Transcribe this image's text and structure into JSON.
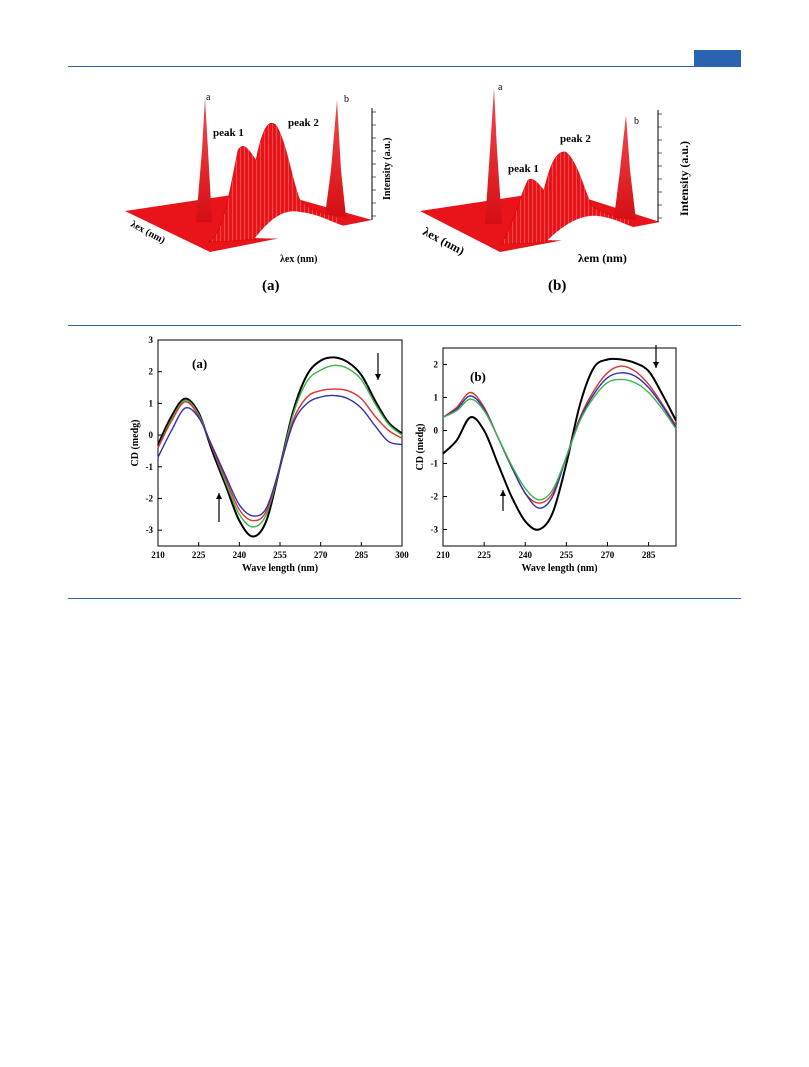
{
  "colors": {
    "rule": "#2a64b0",
    "surface": "#e8141a"
  },
  "fluorescence": [
    {
      "panel": "(a)",
      "peak_a": "a",
      "peak_b": "b",
      "peak1": "peak 1",
      "peak2": "peak 2",
      "z_label": "Intensity (a.u.)",
      "x_label": "λex (nm)",
      "y_label": "λex (nm)"
    },
    {
      "panel": "(b)",
      "peak_a": "a",
      "peak_b": "b",
      "peak1": "peak 1",
      "peak2": "peak 2",
      "z_label": "Intensity (a.u.)",
      "x_label": "λem (nm)",
      "y_label": "λex (nm)"
    }
  ],
  "chart_data": [
    {
      "type": "line",
      "panel_label": "(a)",
      "xlabel": "Wave length (nm)",
      "ylabel": "CD (medg)",
      "xlim": [
        210,
        300
      ],
      "ylim": [
        -3.5,
        3
      ],
      "xticks": [
        210,
        225,
        240,
        255,
        270,
        285,
        300
      ],
      "yticks": [
        -3,
        -2,
        -1,
        0,
        1,
        2,
        3
      ],
      "grid": false,
      "arrows": [
        "up near 233 nm",
        "down near 290 nm"
      ],
      "series": [
        {
          "color": "#000000",
          "x": [
            210,
            215,
            220,
            225,
            230,
            235,
            240,
            245,
            250,
            255,
            260,
            265,
            270,
            275,
            280,
            285,
            290,
            295,
            300
          ],
          "y": [
            -0.3,
            0.6,
            1.15,
            0.7,
            -0.5,
            -1.6,
            -2.7,
            -3.2,
            -2.7,
            -1.0,
            0.8,
            1.9,
            2.35,
            2.45,
            2.3,
            1.9,
            1.1,
            0.4,
            0.05
          ]
        },
        {
          "color": "#3cb44b",
          "x": [
            210,
            215,
            220,
            225,
            230,
            235,
            240,
            245,
            250,
            255,
            260,
            265,
            270,
            275,
            280,
            285,
            290,
            295,
            300
          ],
          "y": [
            -0.4,
            0.5,
            1.1,
            0.65,
            -0.4,
            -1.5,
            -2.5,
            -2.9,
            -2.5,
            -1.0,
            0.7,
            1.7,
            2.05,
            2.2,
            2.1,
            1.75,
            1.0,
            0.35,
            0.0
          ]
        },
        {
          "color": "#e03030",
          "x": [
            210,
            215,
            220,
            225,
            230,
            235,
            240,
            245,
            250,
            255,
            260,
            265,
            270,
            275,
            280,
            285,
            290,
            295,
            300
          ],
          "y": [
            -0.4,
            0.45,
            1.05,
            0.6,
            -0.4,
            -1.4,
            -2.35,
            -2.7,
            -2.4,
            -1.0,
            0.5,
            1.2,
            1.4,
            1.45,
            1.4,
            1.15,
            0.6,
            0.15,
            -0.1
          ]
        },
        {
          "color": "#3030b0",
          "x": [
            210,
            215,
            220,
            225,
            230,
            235,
            240,
            245,
            250,
            255,
            260,
            265,
            270,
            275,
            280,
            285,
            290,
            295,
            300
          ],
          "y": [
            -0.7,
            0.15,
            0.85,
            0.55,
            -0.35,
            -1.3,
            -2.2,
            -2.55,
            -2.3,
            -1.0,
            0.4,
            1.0,
            1.2,
            1.25,
            1.15,
            0.85,
            0.3,
            -0.2,
            -0.3
          ]
        }
      ]
    },
    {
      "type": "line",
      "panel_label": "(b)",
      "xlabel": "Wave length (nm)",
      "ylabel": "CD (medg)",
      "xlim": [
        210,
        295
      ],
      "ylim": [
        -3.5,
        2.5
      ],
      "xticks": [
        210,
        225,
        240,
        255,
        270,
        285
      ],
      "yticks": [
        -3,
        -2,
        -1,
        0,
        1,
        2
      ],
      "grid": false,
      "arrows": [
        "up near 232 nm",
        "down near 287 nm"
      ],
      "series": [
        {
          "color": "#000000",
          "x": [
            210,
            215,
            220,
            225,
            230,
            235,
            240,
            245,
            250,
            255,
            260,
            265,
            270,
            275,
            280,
            285,
            290,
            295
          ],
          "y": [
            -0.7,
            -0.3,
            0.4,
            0.0,
            -1.0,
            -2.0,
            -2.75,
            -3.0,
            -2.5,
            -1.0,
            0.8,
            1.9,
            2.15,
            2.15,
            2.05,
            1.8,
            1.1,
            0.3
          ]
        },
        {
          "color": "#e03030",
          "x": [
            210,
            215,
            220,
            225,
            230,
            235,
            240,
            245,
            250,
            255,
            260,
            265,
            270,
            275,
            280,
            285,
            290,
            295
          ],
          "y": [
            0.4,
            0.7,
            1.15,
            0.7,
            -0.2,
            -1.1,
            -1.9,
            -2.2,
            -1.9,
            -0.8,
            0.4,
            1.2,
            1.75,
            1.95,
            1.8,
            1.4,
            0.8,
            0.15
          ]
        },
        {
          "color": "#3030b0",
          "x": [
            210,
            215,
            220,
            225,
            230,
            235,
            240,
            245,
            250,
            255,
            260,
            265,
            270,
            275,
            280,
            285,
            290,
            295
          ],
          "y": [
            0.4,
            0.65,
            1.05,
            0.65,
            -0.2,
            -1.1,
            -1.9,
            -2.35,
            -2.0,
            -0.8,
            0.35,
            1.1,
            1.6,
            1.75,
            1.65,
            1.3,
            0.75,
            0.1
          ]
        },
        {
          "color": "#3cb44b",
          "x": [
            210,
            215,
            220,
            225,
            230,
            235,
            240,
            245,
            250,
            255,
            260,
            265,
            270,
            275,
            280,
            285,
            290,
            295
          ],
          "y": [
            0.4,
            0.6,
            0.95,
            0.6,
            -0.2,
            -1.05,
            -1.75,
            -2.1,
            -1.8,
            -0.8,
            0.3,
            1.0,
            1.45,
            1.55,
            1.45,
            1.15,
            0.65,
            0.05
          ]
        }
      ]
    }
  ]
}
